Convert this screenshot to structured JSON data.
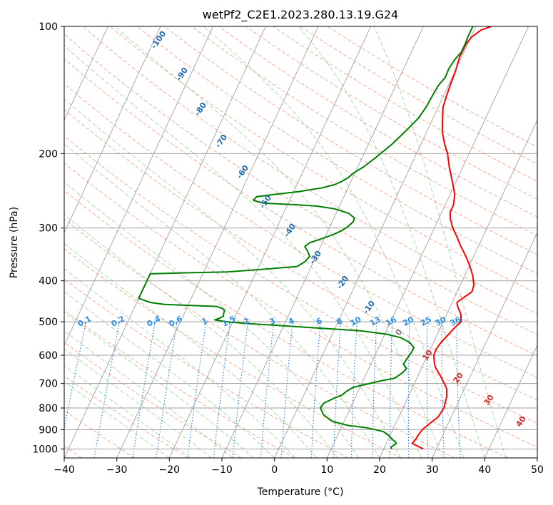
{
  "chart_data": {
    "type": "line",
    "title": "wetPf2_C2E1.2023.280.13.19.G24",
    "xlabel": "Temperature (°C)",
    "ylabel": "Pressure (hPa)",
    "xlim": [
      -40,
      50
    ],
    "ylim": [
      1050,
      100
    ],
    "y_scale": "log",
    "grid": true,
    "x_ticks": [
      -40,
      -30,
      -20,
      -10,
      0,
      10,
      20,
      30,
      40,
      50
    ],
    "x_tick_labels": [
      "−40",
      "−30",
      "−20",
      "−10",
      "0",
      "10",
      "20",
      "30",
      "40",
      "50"
    ],
    "y_ticks": [
      1000,
      900,
      800,
      700,
      600,
      500,
      400,
      300,
      200,
      100
    ],
    "y_tick_labels": [
      "1000",
      "900",
      "800",
      "700",
      "600",
      "500",
      "400",
      "300",
      "200",
      "100"
    ],
    "series": [
      {
        "role": "temperature",
        "color": "#ff0000",
        "points": [
          [
            27.5,
            1000
          ],
          [
            24.9,
            970
          ],
          [
            25.2,
            950
          ],
          [
            25.3,
            930
          ],
          [
            25.6,
            900
          ],
          [
            26.5,
            870
          ],
          [
            27.5,
            840
          ],
          [
            27.8,
            800
          ],
          [
            27.6,
            780
          ],
          [
            27.3,
            750
          ],
          [
            26.6,
            720
          ],
          [
            25.7,
            700
          ],
          [
            24.2,
            670
          ],
          [
            22.5,
            640
          ],
          [
            21.8,
            620
          ],
          [
            21.2,
            600
          ],
          [
            21.1,
            580
          ],
          [
            21.4,
            560
          ],
          [
            22.0,
            540
          ],
          [
            22.6,
            520
          ],
          [
            23.4,
            500
          ],
          [
            22.7,
            480
          ],
          [
            21.4,
            460
          ],
          [
            20.9,
            450
          ],
          [
            21.6,
            440
          ],
          [
            22.8,
            425
          ],
          [
            22.6,
            410
          ],
          [
            21.6,
            390
          ],
          [
            20.2,
            370
          ],
          [
            18.5,
            350
          ],
          [
            16.5,
            330
          ],
          [
            15.1,
            315
          ],
          [
            13.5,
            300
          ],
          [
            12.2,
            285
          ],
          [
            11.6,
            275
          ],
          [
            11.6,
            265
          ],
          [
            10.9,
            250
          ],
          [
            9.5,
            235
          ],
          [
            7.4,
            215
          ],
          [
            5.9,
            200
          ],
          [
            4.5,
            190
          ],
          [
            3.0,
            178
          ],
          [
            1.8,
            165
          ],
          [
            0.9,
            155
          ],
          [
            0.6,
            147
          ],
          [
            0.3,
            137
          ],
          [
            0.1,
            128
          ],
          [
            -0.4,
            118
          ],
          [
            -0.3,
            110
          ],
          [
            0.1,
            106
          ],
          [
            1.3,
            102
          ],
          [
            2.9,
            100
          ]
        ]
      },
      {
        "role": "dewpoint",
        "color": "#008000",
        "points": [
          [
            21.5,
            1000
          ],
          [
            21.2,
            990
          ],
          [
            21.9,
            970
          ],
          [
            21.5,
            960
          ],
          [
            20.8,
            950
          ],
          [
            19.8,
            930
          ],
          [
            18.4,
            910
          ],
          [
            16.6,
            900
          ],
          [
            14.7,
            890
          ],
          [
            11.2,
            880
          ],
          [
            7.7,
            860
          ],
          [
            5.5,
            830
          ],
          [
            4.3,
            800
          ],
          [
            4.5,
            780
          ],
          [
            5.9,
            760
          ],
          [
            7.3,
            745
          ],
          [
            7.8,
            730
          ],
          [
            8.7,
            715
          ],
          [
            10.5,
            705
          ],
          [
            13.4,
            690
          ],
          [
            15.8,
            680
          ],
          [
            16.8,
            660
          ],
          [
            17.2,
            645
          ],
          [
            16.2,
            630
          ],
          [
            16.4,
            610
          ],
          [
            16.7,
            590
          ],
          [
            16.7,
            575
          ],
          [
            15.5,
            560
          ],
          [
            13.3,
            545
          ],
          [
            10.3,
            535
          ],
          [
            5.0,
            525
          ],
          [
            -0.3,
            520
          ],
          [
            -5.8,
            515
          ],
          [
            -11.1,
            510
          ],
          [
            -16.9,
            505
          ],
          [
            -21.2,
            500
          ],
          [
            -23.6,
            495
          ],
          [
            -22.8,
            490
          ],
          [
            -22.3,
            485
          ],
          [
            -22.5,
            478
          ],
          [
            -22.6,
            470
          ],
          [
            -23.2,
            465
          ],
          [
            -24.5,
            460
          ],
          [
            -34.6,
            455
          ],
          [
            -37.5,
            450
          ],
          [
            -40.0,
            440
          ],
          [
            -40.0,
            385
          ],
          [
            -33.4,
            383
          ],
          [
            -25.5,
            381
          ],
          [
            -18.2,
            375
          ],
          [
            -12.7,
            370
          ],
          [
            -11.6,
            360
          ],
          [
            -11.2,
            350
          ],
          [
            -12.1,
            340
          ],
          [
            -13.0,
            332
          ],
          [
            -12.4,
            325
          ],
          [
            -10.5,
            318
          ],
          [
            -8.7,
            311
          ],
          [
            -7.5,
            305
          ],
          [
            -6.6,
            298
          ],
          [
            -6.0,
            290
          ],
          [
            -6.1,
            284
          ],
          [
            -7.6,
            277
          ],
          [
            -10.8,
            270
          ],
          [
            -14.5,
            266
          ],
          [
            -19.3,
            264
          ],
          [
            -24.7,
            262
          ],
          [
            -26.9,
            258
          ],
          [
            -26.6,
            253
          ],
          [
            -23.6,
            250
          ],
          [
            -19.0,
            246
          ],
          [
            -14.9,
            241
          ],
          [
            -12.9,
            237
          ],
          [
            -11.8,
            233
          ],
          [
            -10.9,
            228
          ],
          [
            -10.2,
            222
          ],
          [
            -8.9,
            215
          ],
          [
            -7.5,
            205
          ],
          [
            -5.5,
            190
          ],
          [
            -4.2,
            178
          ],
          [
            -2.8,
            165
          ],
          [
            -2.3,
            155
          ],
          [
            -2.1,
            145
          ],
          [
            -1.9,
            138
          ],
          [
            -1.3,
            132
          ],
          [
            -1.4,
            126
          ],
          [
            -1.1,
            120
          ],
          [
            -0.5,
            115
          ],
          [
            -0.5,
            110
          ],
          [
            -0.6,
            106
          ],
          [
            -0.6,
            100
          ]
        ]
      }
    ],
    "dry_adiabat_labels": [
      "-100",
      "-90",
      "-80",
      "-70",
      "-60",
      "-50",
      "-40",
      "-30",
      "-20",
      "-10",
      "0",
      "10",
      "20",
      "30",
      "40"
    ],
    "mixing_ratio_labels": [
      "0.1",
      "0.2",
      "0.4",
      "0.6",
      "1",
      "1.5",
      "2",
      "3",
      "4",
      "6",
      "8",
      "10",
      "13",
      "16",
      "20",
      "25",
      "30",
      "36"
    ],
    "colors": {
      "temperature": "#ff0000",
      "dewpoint": "#008000",
      "isotherm_grid": "#a0a0a0",
      "dry_adiabat": "#fa8c6e",
      "moist_adiabat": "#78be78",
      "mixing_ratio": "#1f78dc",
      "dry_adiabat_label_cold": "#1f6bb0",
      "dry_adiabat_label_warm": "#d62728",
      "mixing_ratio_label": "#2a8fe8"
    }
  }
}
